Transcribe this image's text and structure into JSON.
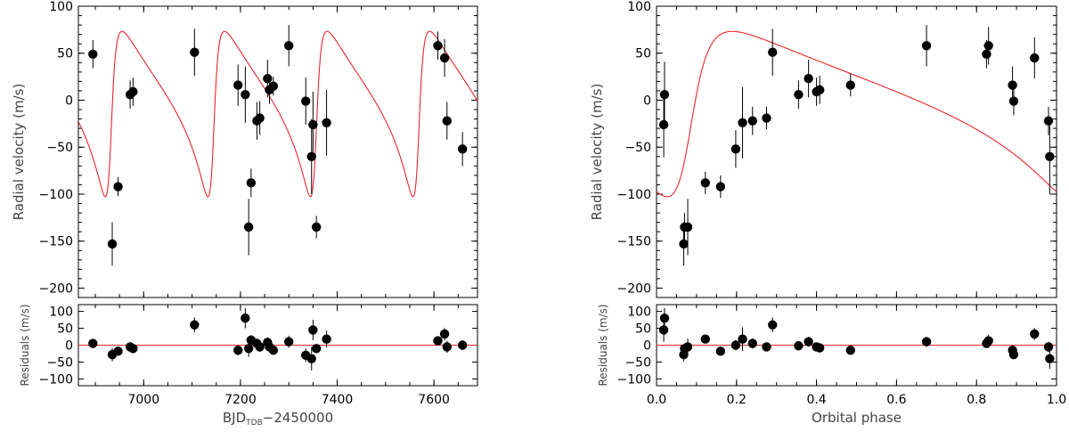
{
  "chart_data": [
    {
      "type": "scatter",
      "panel": "left",
      "title": "",
      "xlabel": "BJD",
      "xlabel_sub": "TDB",
      "xlabel_suffix": "−2450000",
      "ylabel": "Radial velocity  (m/s)",
      "res_ylabel": "Residuals  (m/s)",
      "xlim": [
        6865,
        7690
      ],
      "ylim": [
        -210,
        100
      ],
      "res_ylim": [
        -120,
        120
      ],
      "xticks": [
        7000,
        7200,
        7400,
        7600
      ],
      "xtick_labels": [
        "7000",
        "7200",
        "7400",
        "7600"
      ],
      "yticks": [
        100,
        50,
        0,
        -50,
        -100,
        -150,
        -200
      ],
      "ytick_labels": [
        "100",
        "50",
        "0",
        "−50",
        "−100",
        "−150",
        "−200"
      ],
      "res_yticks": [
        100,
        50,
        0,
        -50,
        -100
      ],
      "res_ytick_labels": [
        "100",
        "50",
        "0",
        "−50",
        "−100"
      ],
      "model": {
        "kind": "keplerian_time",
        "K": 88,
        "e": 0.58,
        "omega_deg": 252,
        "gamma": 1,
        "P": 212,
        "tp": 6932,
        "color": "#e8262a"
      },
      "rv": {
        "x": [
          6895,
          6935,
          6947,
          6972,
          6978,
          7105,
          7195,
          7210,
          7217,
          7222,
          7234,
          7240,
          7256,
          7260,
          7268,
          7300,
          7335,
          7347,
          7350,
          7357,
          7378,
          7608,
          7622,
          7627,
          7659
        ],
        "y": [
          49,
          -153,
          -92,
          6,
          9,
          51,
          16,
          6,
          -135,
          -88,
          -22,
          -19,
          23,
          11,
          15,
          58,
          -1,
          -60,
          -26,
          -135,
          -24,
          58,
          45,
          -22,
          -52
        ],
        "err": [
          15,
          23,
          10,
          15,
          15,
          25,
          22,
          30,
          30,
          15,
          20,
          18,
          20,
          15,
          10,
          22,
          25,
          40,
          35,
          12,
          35,
          15,
          20,
          20,
          18
        ]
      },
      "residuals": {
        "x": [
          6895,
          6935,
          6947,
          6972,
          6978,
          7105,
          7195,
          7210,
          7217,
          7222,
          7234,
          7240,
          7256,
          7260,
          7268,
          7300,
          7335,
          7347,
          7350,
          7357,
          7378,
          7608,
          7622,
          7627,
          7659
        ],
        "y": [
          5,
          -28,
          -18,
          -5,
          -10,
          60,
          -15,
          80,
          -10,
          15,
          5,
          -5,
          8,
          -5,
          -15,
          10,
          -30,
          -40,
          45,
          -10,
          18,
          13,
          33,
          -5,
          0
        ],
        "err": [
          12,
          20,
          10,
          12,
          12,
          22,
          15,
          30,
          25,
          15,
          15,
          15,
          15,
          12,
          10,
          18,
          20,
          35,
          30,
          12,
          25,
          12,
          18,
          18,
          15
        ]
      }
    },
    {
      "type": "scatter",
      "panel": "right",
      "title": "",
      "xlabel": "Orbital phase",
      "ylabel": "Radial velocity  (m/s)",
      "res_ylabel": "Residuals  (m/s)",
      "xlim": [
        0.0,
        1.0
      ],
      "ylim": [
        -210,
        100
      ],
      "res_ylim": [
        -120,
        120
      ],
      "xticks": [
        0.0,
        0.2,
        0.4,
        0.6,
        0.8,
        1.0
      ],
      "xtick_labels": [
        "0.0",
        "0.2",
        "0.4",
        "0.6",
        "0.8",
        "1.0"
      ],
      "yticks": [
        100,
        50,
        0,
        -50,
        -100,
        -150,
        -200
      ],
      "ytick_labels": [
        "100",
        "50",
        "0",
        "−50",
        "−100",
        "−150",
        "−200"
      ],
      "res_yticks": [
        100,
        50,
        0,
        -50,
        -100
      ],
      "res_ytick_labels": [
        "100",
        "50",
        "0",
        "−50",
        "−100"
      ],
      "model": {
        "kind": "keplerian_phase",
        "K": 88,
        "e": 0.58,
        "omega_deg": 252,
        "gamma": 1,
        "phase_peri": 0.08,
        "color": "#e8262a"
      },
      "rv": {
        "x": [
          0.018,
          0.02,
          0.068,
          0.07,
          0.078,
          0.122,
          0.16,
          0.198,
          0.215,
          0.24,
          0.275,
          0.29,
          0.355,
          0.38,
          0.4,
          0.408,
          0.485,
          0.675,
          0.825,
          0.83,
          0.89,
          0.893,
          0.945,
          0.98,
          0.983
        ],
        "y": [
          -26,
          6,
          -153,
          -135,
          -135,
          -88,
          -92,
          -52,
          -24,
          -22,
          -19,
          51,
          6,
          23,
          9,
          11,
          16,
          58,
          49,
          58,
          16,
          -1,
          45,
          -22,
          -60
        ],
        "err": [
          35,
          35,
          23,
          15,
          30,
          12,
          12,
          20,
          38,
          15,
          12,
          25,
          15,
          20,
          15,
          15,
          12,
          22,
          15,
          20,
          20,
          15,
          22,
          15,
          40
        ]
      },
      "residuals": {
        "x": [
          0.018,
          0.02,
          0.068,
          0.07,
          0.078,
          0.122,
          0.16,
          0.198,
          0.215,
          0.24,
          0.275,
          0.29,
          0.355,
          0.38,
          0.4,
          0.408,
          0.485,
          0.675,
          0.825,
          0.83,
          0.89,
          0.893,
          0.945,
          0.98,
          0.983
        ],
        "y": [
          45,
          80,
          -28,
          -10,
          -5,
          18,
          -18,
          0,
          18,
          5,
          -5,
          60,
          -2,
          10,
          -5,
          -8,
          -15,
          10,
          5,
          13,
          -15,
          -28,
          33,
          -5,
          -40
        ],
        "err": [
          35,
          30,
          20,
          15,
          25,
          10,
          10,
          15,
          35,
          15,
          12,
          22,
          12,
          15,
          12,
          12,
          10,
          15,
          12,
          18,
          15,
          12,
          18,
          15,
          30
        ]
      }
    }
  ]
}
